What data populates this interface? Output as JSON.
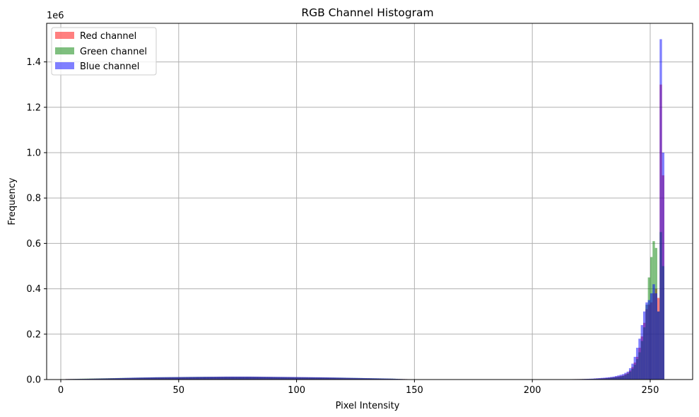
{
  "chart_data": {
    "type": "bar",
    "subtype": "histogram",
    "title": "RGB Channel Histogram",
    "xlabel": "Pixel Intensity",
    "ylabel": "Frequency",
    "y_offset_text": "1e6",
    "xlim": [
      -6,
      268
    ],
    "ylim": [
      0,
      1.57
    ],
    "y_unit_multiplier": 1000000,
    "xticks": [
      0,
      50,
      100,
      150,
      200,
      250
    ],
    "yticks": [
      "0.0",
      "0.2",
      "0.4",
      "0.6",
      "0.8",
      "1.0",
      "1.2",
      "1.4"
    ],
    "grid": true,
    "legend_position": "upper left",
    "alpha": 0.5,
    "series": [
      {
        "name": "Red channel",
        "color": "#ff0000",
        "values": [
          [
            2,
            0.002
          ],
          [
            10,
            0.003
          ],
          [
            20,
            0.005
          ],
          [
            30,
            0.007
          ],
          [
            40,
            0.009
          ],
          [
            50,
            0.01
          ],
          [
            60,
            0.011
          ],
          [
            70,
            0.012
          ],
          [
            80,
            0.012
          ],
          [
            90,
            0.011
          ],
          [
            100,
            0.01
          ],
          [
            110,
            0.009
          ],
          [
            120,
            0.007
          ],
          [
            130,
            0.005
          ],
          [
            140,
            0.003
          ],
          [
            145,
            0.002
          ],
          [
            150,
            0.001
          ],
          [
            210,
            0.001
          ],
          [
            220,
            0.002
          ],
          [
            225,
            0.003
          ],
          [
            230,
            0.006
          ],
          [
            232,
            0.008
          ],
          [
            234,
            0.01
          ],
          [
            236,
            0.014
          ],
          [
            238,
            0.018
          ],
          [
            240,
            0.03
          ],
          [
            241,
            0.04
          ],
          [
            242,
            0.055
          ],
          [
            243,
            0.075
          ],
          [
            244,
            0.1
          ],
          [
            245,
            0.14
          ],
          [
            246,
            0.19
          ],
          [
            247,
            0.25
          ],
          [
            248,
            0.31
          ],
          [
            249,
            0.33
          ],
          [
            250,
            0.34
          ],
          [
            251,
            0.38
          ],
          [
            252,
            0.4
          ],
          [
            253,
            0.36
          ],
          [
            254,
            1.3
          ],
          [
            255,
            0.9
          ]
        ]
      },
      {
        "name": "Green channel",
        "color": "#008000",
        "values": [
          [
            2,
            0.002
          ],
          [
            10,
            0.004
          ],
          [
            20,
            0.006
          ],
          [
            30,
            0.008
          ],
          [
            40,
            0.01
          ],
          [
            50,
            0.011
          ],
          [
            60,
            0.012
          ],
          [
            70,
            0.012
          ],
          [
            80,
            0.012
          ],
          [
            90,
            0.011
          ],
          [
            100,
            0.01
          ],
          [
            110,
            0.009
          ],
          [
            120,
            0.008
          ],
          [
            130,
            0.006
          ],
          [
            140,
            0.004
          ],
          [
            145,
            0.002
          ],
          [
            150,
            0.001
          ],
          [
            210,
            0.001
          ],
          [
            220,
            0.002
          ],
          [
            225,
            0.003
          ],
          [
            230,
            0.005
          ],
          [
            232,
            0.007
          ],
          [
            234,
            0.009
          ],
          [
            236,
            0.012
          ],
          [
            238,
            0.016
          ],
          [
            240,
            0.025
          ],
          [
            241,
            0.035
          ],
          [
            242,
            0.048
          ],
          [
            243,
            0.065
          ],
          [
            244,
            0.09
          ],
          [
            245,
            0.12
          ],
          [
            246,
            0.17
          ],
          [
            247,
            0.23
          ],
          [
            248,
            0.33
          ],
          [
            249,
            0.45
          ],
          [
            250,
            0.54
          ],
          [
            251,
            0.61
          ],
          [
            252,
            0.58
          ],
          [
            253,
            0.3
          ],
          [
            254,
            0.65
          ],
          [
            255,
            0.5
          ]
        ]
      },
      {
        "name": "Blue channel",
        "color": "#0000ff",
        "values": [
          [
            2,
            0.002
          ],
          [
            10,
            0.003
          ],
          [
            20,
            0.005
          ],
          [
            30,
            0.008
          ],
          [
            40,
            0.01
          ],
          [
            50,
            0.011
          ],
          [
            60,
            0.012
          ],
          [
            70,
            0.013
          ],
          [
            80,
            0.013
          ],
          [
            90,
            0.012
          ],
          [
            100,
            0.011
          ],
          [
            110,
            0.01
          ],
          [
            120,
            0.008
          ],
          [
            130,
            0.006
          ],
          [
            140,
            0.004
          ],
          [
            145,
            0.002
          ],
          [
            150,
            0.001
          ],
          [
            210,
            0.001
          ],
          [
            220,
            0.002
          ],
          [
            225,
            0.004
          ],
          [
            230,
            0.008
          ],
          [
            232,
            0.01
          ],
          [
            234,
            0.013
          ],
          [
            236,
            0.018
          ],
          [
            238,
            0.024
          ],
          [
            240,
            0.035
          ],
          [
            241,
            0.05
          ],
          [
            242,
            0.07
          ],
          [
            243,
            0.1
          ],
          [
            244,
            0.14
          ],
          [
            245,
            0.18
          ],
          [
            246,
            0.24
          ],
          [
            247,
            0.3
          ],
          [
            248,
            0.34
          ],
          [
            249,
            0.35
          ],
          [
            250,
            0.38
          ],
          [
            251,
            0.42
          ],
          [
            252,
            0.38
          ],
          [
            253,
            0.3
          ],
          [
            254,
            1.5
          ],
          [
            255,
            1.0
          ]
        ]
      }
    ]
  }
}
